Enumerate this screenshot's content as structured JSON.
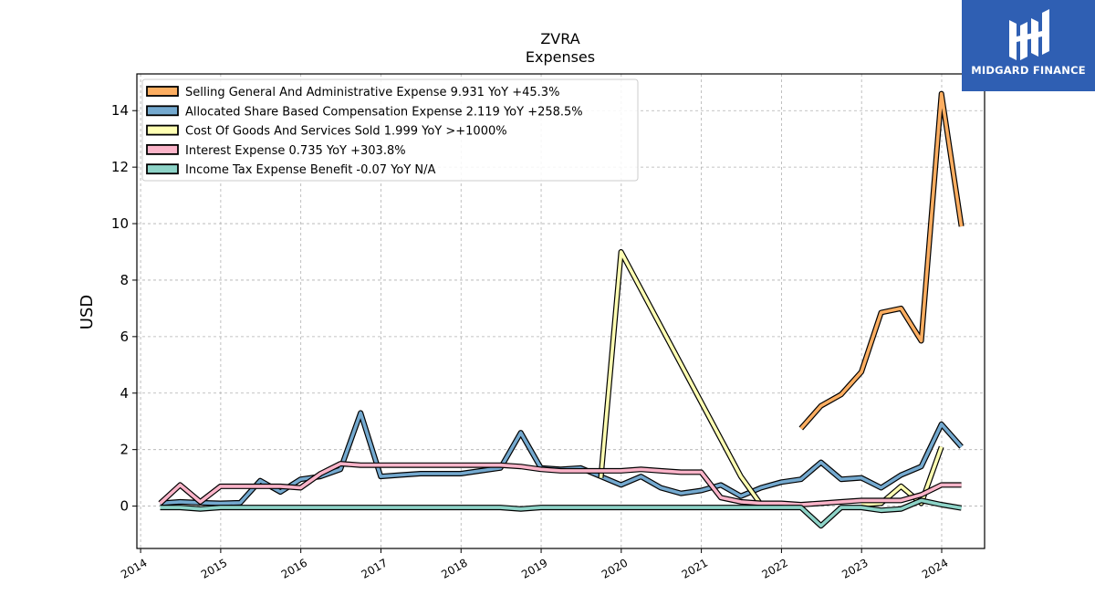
{
  "brand": {
    "name": "MIDGARD FINANCE",
    "logo_icon": "midgard-logo-icon",
    "bg_color": "#2f5fb3"
  },
  "chart_data": {
    "type": "line",
    "title": "ZVRA",
    "subtitle": "Expenses",
    "ylabel": "USD",
    "xlabel": "",
    "xlim": [
      "2013-12-15",
      "2024-07-15"
    ],
    "ylim": [
      -1.5,
      15.3
    ],
    "yticks": [
      0,
      2,
      4,
      6,
      8,
      10,
      12,
      14
    ],
    "xticks": [
      "2014",
      "2015",
      "2016",
      "2017",
      "2018",
      "2019",
      "2020",
      "2021",
      "2022",
      "2023",
      "2024"
    ],
    "grid": true,
    "legend_position": "top-left",
    "series": [
      {
        "name": "Selling General And Administrative Expense  9.931 YoY +45.3%",
        "color": "#fdae61",
        "points": [
          [
            "2022-03-31",
            2.75
          ],
          [
            "2022-06-30",
            3.55
          ],
          [
            "2022-09-30",
            3.95
          ],
          [
            "2022-12-31",
            4.75
          ],
          [
            "2023-03-31",
            6.85
          ],
          [
            "2023-06-30",
            7.0
          ],
          [
            "2023-09-30",
            5.85
          ],
          [
            "2023-12-31",
            14.6
          ],
          [
            "2024-03-31",
            9.9
          ]
        ]
      },
      {
        "name": "Allocated Share Based Compensation Expense  2.119 YoY +258.5%",
        "color": "#74a9cf",
        "points": [
          [
            "2014-03-31",
            0.1
          ],
          [
            "2014-06-30",
            0.15
          ],
          [
            "2014-09-30",
            0.12
          ],
          [
            "2014-12-31",
            0.1
          ],
          [
            "2015-03-31",
            0.12
          ],
          [
            "2015-06-30",
            0.9
          ],
          [
            "2015-09-30",
            0.5
          ],
          [
            "2015-12-31",
            0.95
          ],
          [
            "2016-03-31",
            1.05
          ],
          [
            "2016-06-30",
            1.3
          ],
          [
            "2016-09-30",
            3.3
          ],
          [
            "2016-12-31",
            1.05
          ],
          [
            "2017-03-31",
            1.1
          ],
          [
            "2017-06-30",
            1.15
          ],
          [
            "2017-09-30",
            1.15
          ],
          [
            "2017-12-31",
            1.15
          ],
          [
            "2018-03-31",
            1.25
          ],
          [
            "2018-06-30",
            1.35
          ],
          [
            "2018-09-30",
            2.6
          ],
          [
            "2018-12-31",
            1.35
          ],
          [
            "2019-03-31",
            1.3
          ],
          [
            "2019-06-30",
            1.35
          ],
          [
            "2019-09-30",
            1.05
          ],
          [
            "2019-12-31",
            0.75
          ],
          [
            "2020-03-31",
            1.05
          ],
          [
            "2020-06-30",
            0.65
          ],
          [
            "2020-09-30",
            0.45
          ],
          [
            "2020-12-31",
            0.55
          ],
          [
            "2021-03-31",
            0.75
          ],
          [
            "2021-06-30",
            0.35
          ],
          [
            "2021-09-30",
            0.65
          ],
          [
            "2021-12-31",
            0.85
          ],
          [
            "2022-03-31",
            0.95
          ],
          [
            "2022-06-30",
            1.55
          ],
          [
            "2022-09-30",
            0.95
          ],
          [
            "2022-12-31",
            1.0
          ],
          [
            "2023-03-31",
            0.65
          ],
          [
            "2023-06-30",
            1.1
          ],
          [
            "2023-09-30",
            1.4
          ],
          [
            "2023-12-31",
            2.9
          ],
          [
            "2024-03-31",
            2.1
          ]
        ]
      },
      {
        "name": "Cost Of Goods And Services Sold  1.999 YoY >+1000%",
        "color": "#ffffb3",
        "points": [
          [
            "2019-09-30",
            1.0
          ],
          [
            "2019-12-31",
            9.0
          ],
          [
            "2021-06-30",
            1.05
          ],
          [
            "2021-09-30",
            0.05
          ],
          [
            null,
            null
          ],
          [
            "2022-12-31",
            0.05
          ],
          [
            "2023-03-31",
            0.1
          ],
          [
            "2023-06-30",
            0.7
          ],
          [
            "2023-09-30",
            0.1
          ],
          [
            "2023-12-31",
            2.1
          ]
        ]
      },
      {
        "name": "Interest Expense  0.735 YoY +303.8%",
        "color": "#fbb4c9",
        "points": [
          [
            "2014-03-31",
            0.1
          ],
          [
            "2014-06-30",
            0.75
          ],
          [
            "2014-09-30",
            0.15
          ],
          [
            "2014-12-31",
            0.7
          ],
          [
            "2015-03-31",
            0.7
          ],
          [
            "2015-06-30",
            0.7
          ],
          [
            "2015-09-30",
            0.7
          ],
          [
            "2015-12-31",
            0.65
          ],
          [
            "2016-03-31",
            1.15
          ],
          [
            "2016-06-30",
            1.5
          ],
          [
            "2016-09-30",
            1.45
          ],
          [
            "2016-12-31",
            1.45
          ],
          [
            "2017-03-31",
            1.45
          ],
          [
            "2017-06-30",
            1.45
          ],
          [
            "2017-09-30",
            1.45
          ],
          [
            "2017-12-31",
            1.45
          ],
          [
            "2018-03-31",
            1.45
          ],
          [
            "2018-06-30",
            1.45
          ],
          [
            "2018-09-30",
            1.4
          ],
          [
            "2018-12-31",
            1.3
          ],
          [
            "2019-03-31",
            1.25
          ],
          [
            "2019-06-30",
            1.25
          ],
          [
            "2019-09-30",
            1.25
          ],
          [
            "2019-12-31",
            1.25
          ],
          [
            "2020-03-31",
            1.3
          ],
          [
            "2020-06-30",
            1.25
          ],
          [
            "2020-09-30",
            1.2
          ],
          [
            "2020-12-31",
            1.2
          ],
          [
            "2021-03-31",
            0.3
          ],
          [
            "2021-06-30",
            0.15
          ],
          [
            "2021-09-30",
            0.1
          ],
          [
            "2021-12-31",
            0.1
          ],
          [
            "2022-03-31",
            0.05
          ],
          [
            "2022-06-30",
            0.1
          ],
          [
            "2022-09-30",
            0.15
          ],
          [
            "2022-12-31",
            0.2
          ],
          [
            "2023-03-31",
            0.2
          ],
          [
            "2023-06-30",
            0.2
          ],
          [
            "2023-09-30",
            0.4
          ],
          [
            "2023-12-31",
            0.75
          ],
          [
            "2024-03-31",
            0.75
          ]
        ]
      },
      {
        "name": "Income Tax Expense Benefit  -0.07 YoY N/A",
        "color": "#8dd3c7",
        "points": [
          [
            "2014-03-31",
            -0.05
          ],
          [
            "2014-06-30",
            -0.05
          ],
          [
            "2014-09-30",
            -0.1
          ],
          [
            "2014-12-31",
            -0.05
          ],
          [
            "2015-03-31",
            -0.05
          ],
          [
            "2015-06-30",
            -0.05
          ],
          [
            "2015-09-30",
            -0.05
          ],
          [
            "2015-12-31",
            -0.05
          ],
          [
            "2016-03-31",
            -0.05
          ],
          [
            "2016-06-30",
            -0.05
          ],
          [
            "2016-09-30",
            -0.05
          ],
          [
            "2016-12-31",
            -0.05
          ],
          [
            "2017-03-31",
            -0.05
          ],
          [
            "2017-06-30",
            -0.05
          ],
          [
            "2017-09-30",
            -0.05
          ],
          [
            "2017-12-31",
            -0.05
          ],
          [
            "2018-03-31",
            -0.05
          ],
          [
            "2018-06-30",
            -0.05
          ],
          [
            "2018-09-30",
            -0.1
          ],
          [
            "2018-12-31",
            -0.05
          ],
          [
            "2019-03-31",
            -0.05
          ],
          [
            "2019-06-30",
            -0.05
          ],
          [
            "2019-09-30",
            -0.05
          ],
          [
            "2019-12-31",
            -0.05
          ],
          [
            "2020-03-31",
            -0.05
          ],
          [
            "2020-06-30",
            -0.05
          ],
          [
            "2020-09-30",
            -0.05
          ],
          [
            "2020-12-31",
            -0.05
          ],
          [
            "2021-03-31",
            -0.05
          ],
          [
            "2021-06-30",
            -0.05
          ],
          [
            "2021-09-30",
            -0.05
          ],
          [
            "2021-12-31",
            -0.05
          ],
          [
            "2022-03-31",
            -0.05
          ],
          [
            "2022-06-30",
            -0.7
          ],
          [
            "2022-09-30",
            -0.05
          ],
          [
            "2022-12-31",
            -0.05
          ],
          [
            "2023-03-31",
            -0.15
          ],
          [
            "2023-06-30",
            -0.1
          ],
          [
            "2023-09-30",
            0.2
          ],
          [
            "2023-12-31",
            0.05
          ],
          [
            "2024-03-31",
            -0.07
          ]
        ]
      }
    ]
  }
}
